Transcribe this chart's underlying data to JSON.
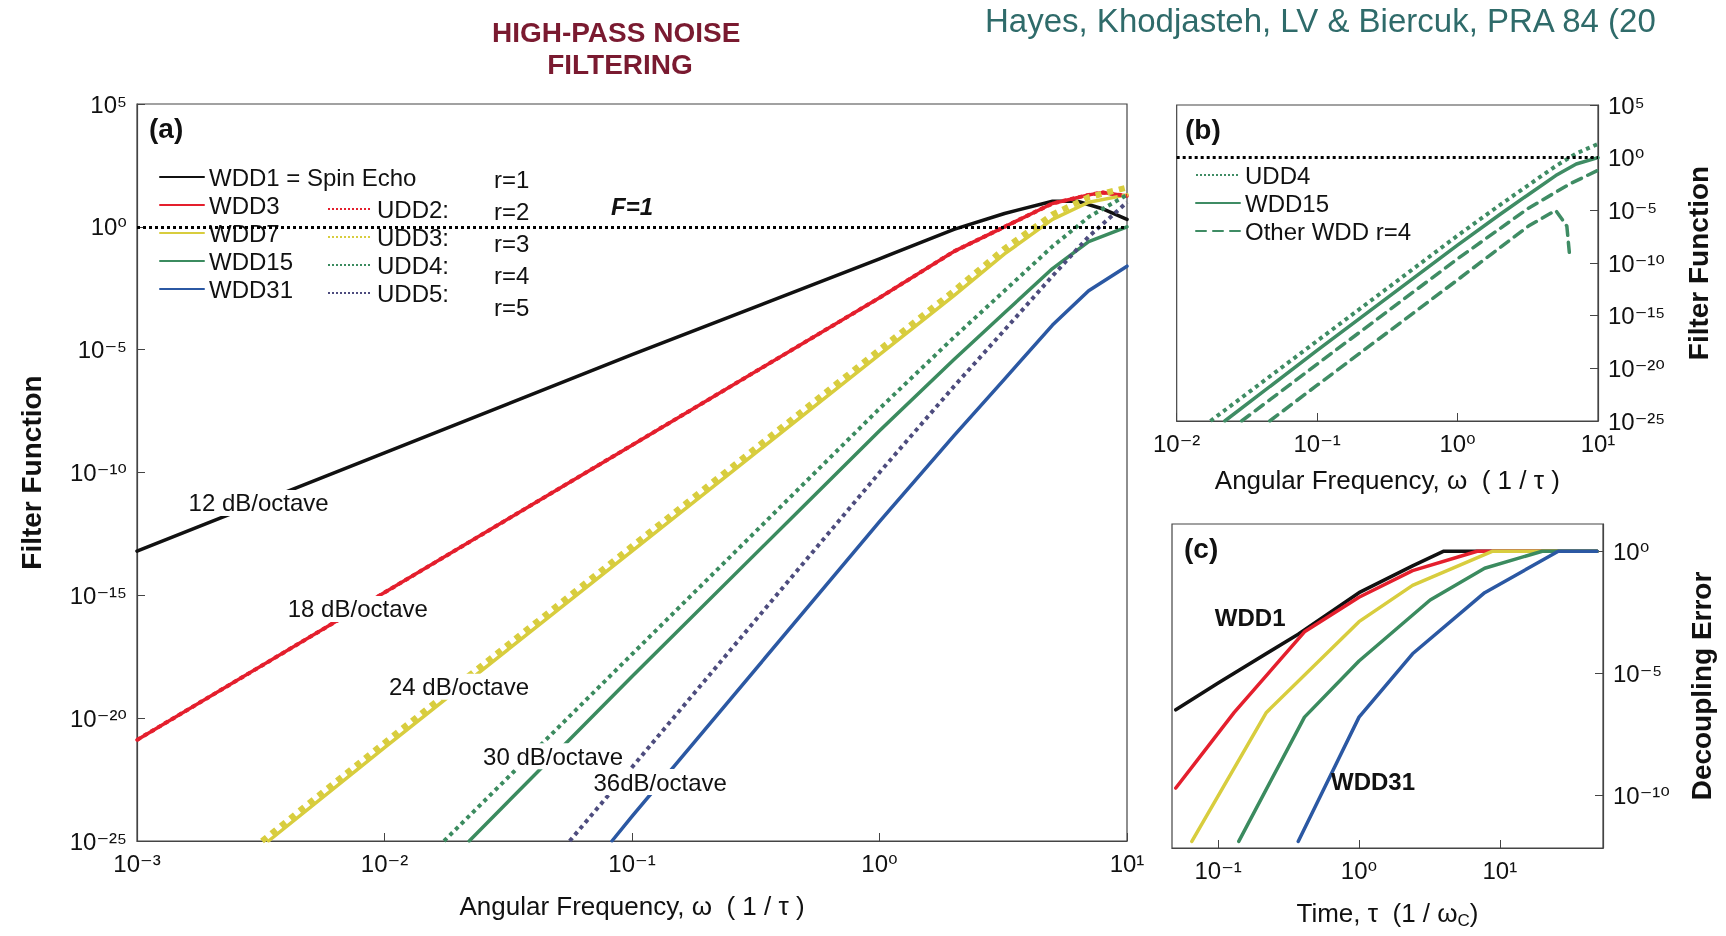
{
  "chart_data": [
    {
      "type": "line",
      "title": "HIGH-PASS NOISE FILTERING",
      "subtitle": "Hayes, Khodjasteh, LV & Biercuk, PRA 84 (20",
      "xlabel": "Angular Frequency, ω  ( 1 / τ )",
      "ylabel": "Filter Function",
      "log": "xy",
      "xlim": [
        0.001,
        10
      ],
      "ylim": [
        1e-25,
        100000
      ],
      "xticks": [
        {
          "value": 0.001,
          "label": "10⁻³"
        },
        {
          "value": 0.01,
          "label": "10⁻²"
        },
        {
          "value": 0.1,
          "label": "10⁻¹"
        },
        {
          "value": 1,
          "label": "10⁰"
        },
        {
          "value": 10,
          "label": "10¹"
        }
      ],
      "yticks": [
        {
          "value": 100000,
          "label": "10⁵"
        },
        {
          "value": 1,
          "label": "10⁰"
        },
        {
          "value": 1e-05,
          "label": "10⁻⁵"
        },
        {
          "value": 1e-10,
          "label": "10⁻¹⁰"
        },
        {
          "value": 1e-15,
          "label": "10⁻¹⁵"
        },
        {
          "value": 1e-20,
          "label": "10⁻²⁰"
        },
        {
          "value": 1e-25,
          "label": "10⁻²⁵"
        }
      ],
      "legend": "top left",
      "ref_lines": [
        {
          "axis": "y",
          "value": 1,
          "label": "F=1",
          "line_style": "dotted",
          "color": "#000000"
        }
      ],
      "annotations": [
        "(a)",
        "r=1",
        "r=2",
        "r=3",
        "r=4",
        "r=5",
        {
          "text": "12 dB/octave",
          "x": 0.0031,
          "y": 5.8e-12
        },
        {
          "text": "18 dB/octave",
          "x": 0.0078,
          "y": 2.8e-16
        },
        {
          "text": "24 dB/octave",
          "x": 0.02,
          "y": 1.9e-19
        },
        {
          "text": "30 dB/octave",
          "x": 0.048,
          "y": 2.8e-22
        },
        {
          "text": "36dB/octave",
          "x": 0.13,
          "y": 2.5e-23
        }
      ],
      "series": [
        {
          "name": "WDD1 = Spin Echo",
          "color": "#111111",
          "line_style": "solid",
          "x": [
            0.001,
            0.01,
            0.1,
            1,
            2,
            3.2,
            5,
            6.3,
            7.9,
            10
          ],
          "values": [
            6.3e-14,
            6.3e-10,
            6.3e-06,
            0.05,
            0.79,
            3.5,
            11,
            11,
            5.6,
            2.0
          ]
        },
        {
          "name": "WDD3",
          "color": "#e41f2d",
          "line_style": "solid",
          "x": [
            0.001,
            0.01,
            0.1,
            1,
            2,
            3.2,
            5,
            7,
            8,
            10
          ],
          "values": [
            1.3e-21,
            1.3e-15,
            1.3e-09,
            0.0013,
            0.1,
            1,
            8.9,
            20,
            25,
            18
          ]
        },
        {
          "name": "WDD7",
          "color": "#d8cd3e",
          "line_style": "solid",
          "x": [
            0.0034,
            0.01,
            0.1,
            1,
            2,
            3.2,
            5,
            7,
            10
          ],
          "values": [
            1e-25,
            6.3e-22,
            6.3e-14,
            6.3e-06,
            0.0016,
            0.079,
            2.0,
            10,
            20
          ]
        },
        {
          "name": "WDD15",
          "color": "#3b8b5f",
          "line_style": "solid",
          "x": [
            0.022,
            0.1,
            1,
            2,
            3.2,
            5,
            7,
            10
          ],
          "values": [
            1e-25,
            5e-19,
            5e-09,
            4e-06,
            0.00032,
            0.02,
            0.25,
            1
          ]
        },
        {
          "name": "WDD31",
          "color": "#2b58a3",
          "line_style": "solid",
          "x": [
            0.083,
            0.1,
            1,
            2,
            3.2,
            5,
            7,
            10
          ],
          "values": [
            1e-25,
            1e-24,
            1e-12,
            3.2e-09,
            6.3e-07,
            0.0001,
            0.0025,
            0.025
          ]
        },
        {
          "name": "UDD2:",
          "color": "#e41f2d",
          "line_style": "dotted",
          "x": [
            0.001,
            0.01,
            0.1,
            1,
            2,
            3.2,
            5,
            7,
            8,
            10
          ],
          "values": [
            1.3e-21,
            1.3e-15,
            1.3e-09,
            0.0013,
            0.1,
            1,
            8.9,
            20,
            25,
            18
          ]
        },
        {
          "name": "UDD3:",
          "color": "#d8cd3e",
          "line_style": "dotted",
          "x": [
            0.0032,
            0.01,
            0.1,
            1,
            2,
            3.2,
            5,
            7,
            10
          ],
          "values": [
            1e-25,
            1e-21,
            1e-13,
            1e-05,
            0.0025,
            0.13,
            3.2,
            16,
            40
          ]
        },
        {
          "name": "UDD4:",
          "color": "#3b8b5f",
          "line_style": "dotted",
          "x": [
            0.0174,
            0.1,
            1,
            2,
            3.2,
            5,
            7,
            10
          ],
          "values": [
            1e-25,
            4e-18,
            4e-08,
            3.2e-05,
            0.0025,
            0.16,
            2.5,
            20
          ]
        },
        {
          "name": "UDD5:",
          "color": "#4d4c7e",
          "line_style": "dotted",
          "x": [
            0.056,
            0.1,
            1,
            2,
            3.2,
            5,
            7,
            10
          ],
          "values": [
            1e-25,
            1e-22,
            1e-10,
            3.2e-07,
            6.3e-05,
            0.01,
            0.4,
            10
          ]
        }
      ]
    },
    {
      "type": "line",
      "xlabel": "Angular Frequency, ω  ( 1 / τ )",
      "ylabel": "Filter Function",
      "log": "xy",
      "xlim": [
        0.01,
        10
      ],
      "ylim": [
        1e-25,
        100000
      ],
      "xticks": [
        {
          "value": 0.01,
          "label": "10⁻²"
        },
        {
          "value": 0.1,
          "label": "10⁻¹"
        },
        {
          "value": 1,
          "label": "10⁰"
        },
        {
          "value": 10,
          "label": "10¹"
        }
      ],
      "yticks": [
        {
          "value": 100000,
          "label": "10⁵"
        },
        {
          "value": 1,
          "label": "10⁰"
        },
        {
          "value": 1e-05,
          "label": "10⁻⁵"
        },
        {
          "value": 1e-10,
          "label": "10⁻¹⁰"
        },
        {
          "value": 1e-15,
          "label": "10⁻¹⁵"
        },
        {
          "value": 1e-20,
          "label": "10⁻²⁰"
        },
        {
          "value": 1e-25,
          "label": "10⁻²⁵"
        }
      ],
      "legend": "top left",
      "ref_lines": [
        {
          "axis": "y",
          "value": 1,
          "line_style": "dotted",
          "color": "#000000"
        }
      ],
      "annotations": [
        "(b)"
      ],
      "series": [
        {
          "name": "UDD4",
          "color": "#3f8c64",
          "line_style": "dotted",
          "x": [
            0.0174,
            0.1,
            1,
            2,
            3.2,
            5,
            7,
            10
          ],
          "values": [
            1e-25,
            4e-18,
            4e-08,
            3.2e-05,
            0.0025,
            0.16,
            2.5,
            20
          ]
        },
        {
          "name": "WDD15",
          "color": "#3f8c64",
          "line_style": "solid",
          "x": [
            0.022,
            0.1,
            1,
            2,
            3.2,
            5,
            7,
            10
          ],
          "values": [
            1e-25,
            5e-19,
            5e-09,
            4e-06,
            0.00032,
            0.02,
            0.25,
            1
          ]
        },
        {
          "name": "Other WDD r=4",
          "color": "#3f8c64",
          "line_style": "dashed",
          "x": [
            0.029,
            0.1,
            1,
            3.2,
            6.3,
            10
          ],
          "values": [
            1e-25,
            2.5e-20,
            2.5e-10,
            1.6e-05,
            0.0032,
            0.063
          ]
        },
        {
          "color": "#3f8c64",
          "line_style": "dashed",
          "x": [
            0.046,
            0.1,
            1,
            3.2,
            5,
            6,
            6.3
          ],
          "values": [
            1e-25,
            2.5e-22,
            2.5e-12,
            3.2e-07,
            1e-05,
            3.2e-07,
            3.2e-10
          ]
        }
      ]
    },
    {
      "type": "line",
      "xlabel": "Time, τ  (1 / ω$_{C}$)",
      "ylabel": "Decoupling Error",
      "log": "xy",
      "xlim": [
        0.047,
        54
      ],
      "ylim": [
        7e-13,
        13
      ],
      "xticks": [
        {
          "value": 0.1,
          "label": "10⁻¹"
        },
        {
          "value": 1,
          "label": "10⁰"
        },
        {
          "value": 10,
          "label": "10¹"
        }
      ],
      "yticks": [
        {
          "value": 1,
          "label": "10⁰"
        },
        {
          "value": 1e-05,
          "label": "10⁻⁵"
        },
        {
          "value": 1e-10,
          "label": "10⁻¹⁰"
        }
      ],
      "annotations": [
        "(c)"
      ],
      "series": [
        {
          "name": "WDD1",
          "color": "#111111",
          "line_style": "solid",
          "x": [
            0.05,
            0.1,
            0.37,
            1,
            2.4,
            4,
            49
          ],
          "values": [
            3.2e-07,
            4e-06,
            0.0004,
            0.02,
            0.25,
            1,
            1
          ]
        },
        {
          "color": "#e41f2d",
          "line_style": "solid",
          "x": [
            0.05,
            0.13,
            0.41,
            1,
            2.4,
            6.9,
            49
          ],
          "values": [
            2e-10,
            2.5e-07,
            0.0005,
            0.013,
            0.16,
            1,
            1
          ]
        },
        {
          "color": "#d8cd3e",
          "line_style": "solid",
          "x": [
            0.065,
            0.22,
            1,
            2.4,
            8.9,
            49
          ],
          "values": [
            1.3e-12,
            2.5e-07,
            0.0013,
            0.04,
            1,
            1
          ]
        },
        {
          "color": "#3b8b5f",
          "line_style": "solid",
          "x": [
            0.14,
            0.41,
            1,
            3.2,
            7.8,
            20,
            49
          ],
          "values": [
            1.3e-12,
            1.6e-07,
            3.2e-05,
            0.01,
            0.2,
            1,
            1
          ]
        },
        {
          "name": "WDD31",
          "color": "#2b58a3",
          "line_style": "solid",
          "x": [
            0.37,
            1,
            2.4,
            7.8,
            26,
            49
          ],
          "values": [
            1.3e-12,
            1.6e-07,
            6.3e-05,
            0.02,
            1,
            1
          ]
        }
      ]
    }
  ]
}
